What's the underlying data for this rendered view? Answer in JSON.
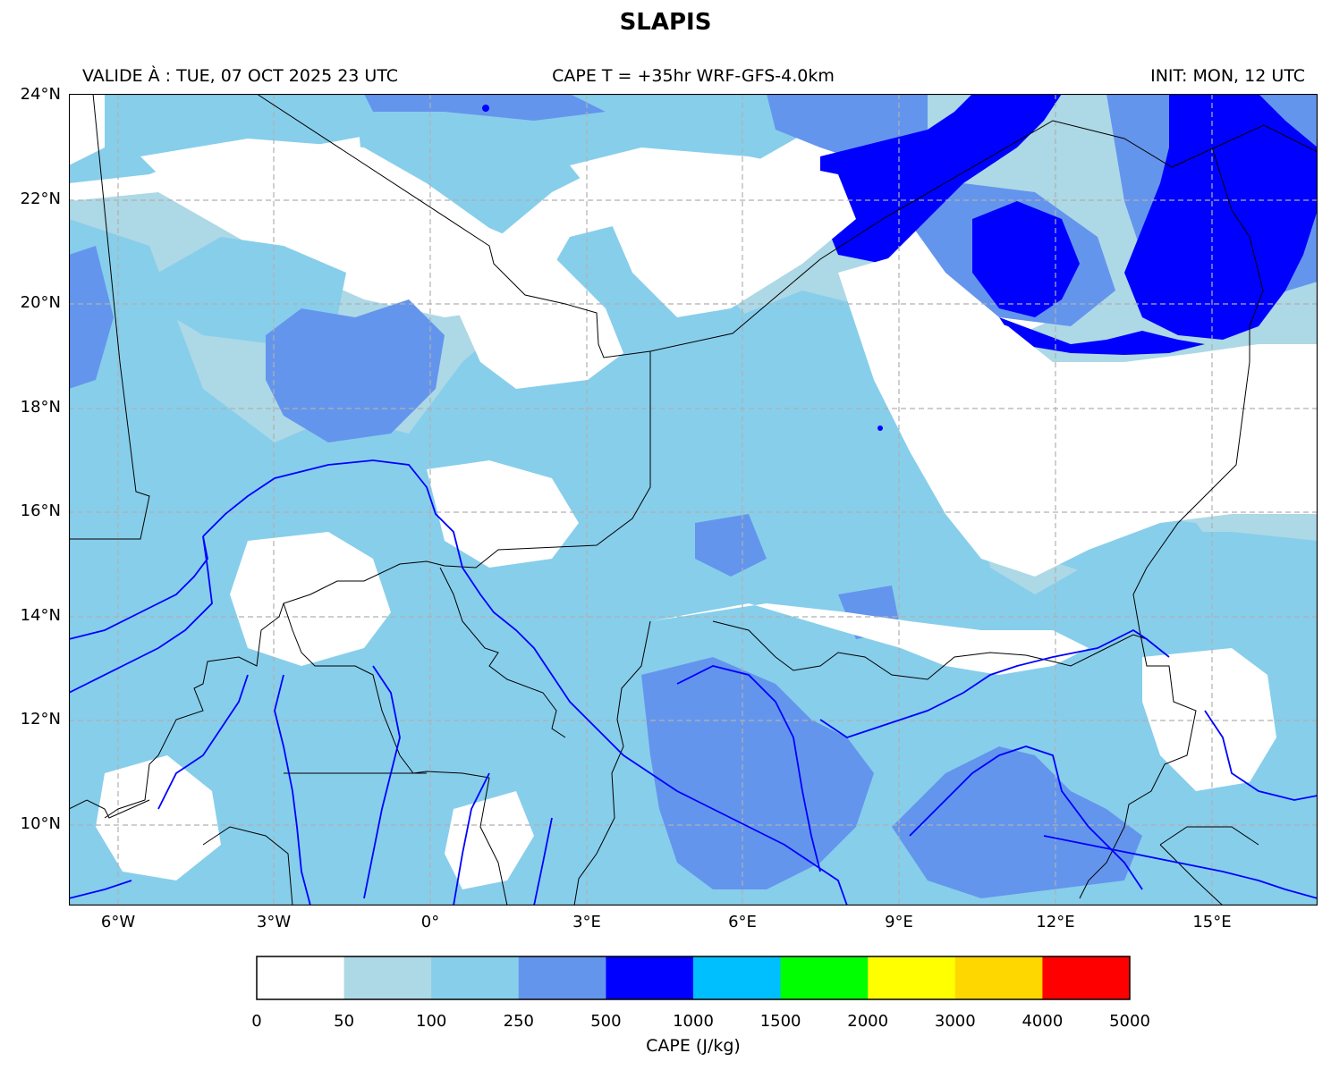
{
  "title": "SLAPIS",
  "header": {
    "valid": "VALIDE À : TUE, 07 OCT 2025 23 UTC",
    "run": "CAPE T = +35hr WRF-GFS-4.0km",
    "init": "INIT: MON, 12 UTC"
  },
  "axes": {
    "lat_labels": [
      "24°N",
      "22°N",
      "20°N",
      "18°N",
      "16°N",
      "14°N",
      "12°N",
      "10°N"
    ],
    "lon_labels": [
      "6°W",
      "3°W",
      "0°",
      "3°E",
      "6°E",
      "9°E",
      "12°E",
      "15°E"
    ]
  },
  "colorbar": {
    "label": "CAPE (J/kg)",
    "ticks": [
      "0",
      "50",
      "100",
      "250",
      "500",
      "1000",
      "1500",
      "2000",
      "3000",
      "4000",
      "5000"
    ],
    "colors": [
      "#ffffff",
      "#add8e6",
      "#87ceeb",
      "#6495ed",
      "#0000ff",
      "#00bfff",
      "#00ff00",
      "#ffff00",
      "#ffd700",
      "#ff0000"
    ]
  },
  "legend_colors": {
    "rivers": "#0000ff",
    "borders": "#000000",
    "grid": "#b0b0b0"
  }
}
